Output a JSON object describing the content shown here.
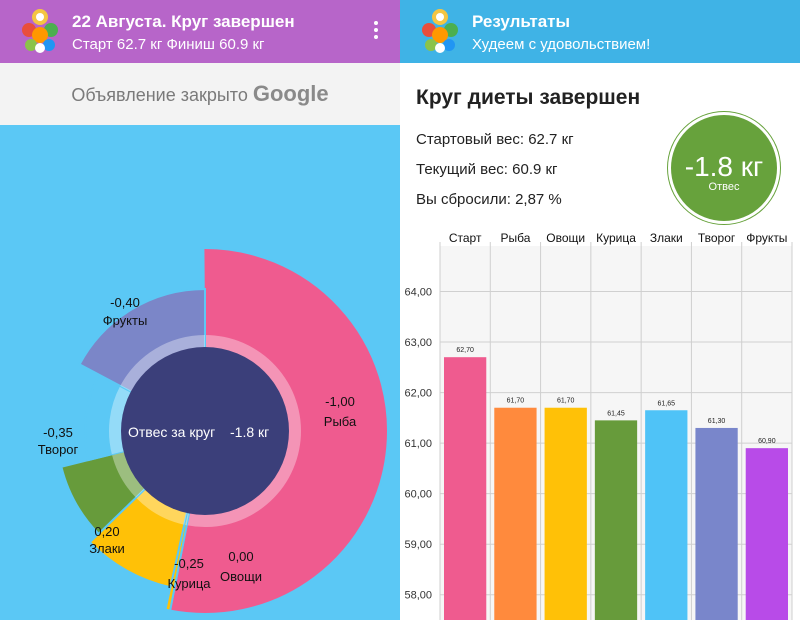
{
  "left_header": {
    "title": "22 Августа. Круг завершен",
    "subtitle": "Старт 62.7 кг Финиш 60.9 кг",
    "background": "#b765c9",
    "menu_icon": "kebab-menu-icon"
  },
  "ad_banner": {
    "text": "Объявление закрыто",
    "brand": "Google"
  },
  "donut": {
    "center_label": "Отвес за круг",
    "center_value": "-1.8 кг",
    "center_color": "#3b3f7a",
    "segments": [
      {
        "value": "-1,00",
        "label": "Рыба",
        "color": "#ef5b8f"
      },
      {
        "value": "0,00",
        "label": "Овощи",
        "color": "#ffc107"
      },
      {
        "value": "-0,25",
        "label": "Курица",
        "color": "#ffc107"
      },
      {
        "value": "0,20",
        "label": "Злаки",
        "color": "#679b3b"
      },
      {
        "value": "-0,35",
        "label": "Творог",
        "color": "#5bc8f5"
      },
      {
        "value": "-0,40",
        "label": "Фрукты",
        "color": "#7b86c8"
      }
    ]
  },
  "right_header": {
    "title": "Результаты",
    "subtitle": "Худеем с удовольствием!",
    "background": "#3fb3e6"
  },
  "summary": {
    "title": "Круг диеты завершен",
    "start_weight": "Стартовый вес: 62.7 кг",
    "current_weight": "Текущий вес: 60.9 кг",
    "lost": "Вы сбросили: 2,87 %",
    "badge_value": "-1.8 кг",
    "badge_label": "Отвес",
    "badge_color": "#67a23c"
  },
  "chart_data": {
    "type": "bar",
    "categories": [
      "Старт",
      "Рыба",
      "Овощи",
      "Курица",
      "Злаки",
      "Творог",
      "Фрукты"
    ],
    "values": [
      62.7,
      61.7,
      61.7,
      61.45,
      61.65,
      61.3,
      60.9
    ],
    "value_labels": [
      "62,70",
      "61,70",
      "61,70",
      "61,45",
      "61,65",
      "61,30",
      "60,90"
    ],
    "colors": [
      "#ef5b8f",
      "#ff8a3d",
      "#ffc107",
      "#679b3b",
      "#4fc3f7",
      "#7986cb",
      "#b84be8"
    ],
    "y_ticks": [
      58,
      59,
      60,
      61,
      62,
      63,
      64
    ],
    "y_tick_labels": [
      "58,00",
      "59,00",
      "60,00",
      "61,00",
      "62,00",
      "63,00",
      "64,00"
    ],
    "ylim": [
      57.5,
      64.9
    ],
    "title": "",
    "xlabel": "",
    "ylabel": "",
    "grid": true
  }
}
